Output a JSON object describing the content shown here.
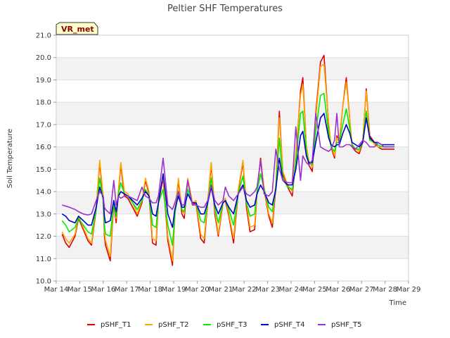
{
  "chart_data": {
    "type": "line",
    "title": "Peltier SHF Temperatures",
    "xlabel": "Time",
    "ylabel": "Soil Temperature",
    "badge": "VR_met",
    "x_ticks": [
      "Mar 14",
      "Mar 15",
      "Mar 16",
      "Mar 17",
      "Mar 18",
      "Mar 19",
      "Mar 20",
      "Mar 21",
      "Mar 22",
      "Mar 23",
      "Mar 24",
      "Mar 25",
      "Mar 26",
      "Mar 27",
      "Mar 28",
      "Mar 29"
    ],
    "x_range_days": [
      14,
      29
    ],
    "ylim": [
      10.0,
      21.0
    ],
    "y_ticks": [
      "10.0",
      "11.0",
      "12.0",
      "13.0",
      "14.0",
      "15.0",
      "16.0",
      "17.0",
      "18.0",
      "19.0",
      "20.0",
      "21.0"
    ],
    "grid": "horizontal alternating bands",
    "legend_position": "bottom",
    "series": [
      {
        "name": "pSHF_T1",
        "color": "#e00000",
        "x": [
          14.25,
          14.4,
          14.55,
          14.8,
          14.95,
          15.15,
          15.35,
          15.5,
          15.7,
          15.85,
          16.0,
          16.05,
          16.1,
          16.3,
          16.45,
          16.55,
          16.65,
          16.75,
          16.9,
          17.05,
          17.25,
          17.45,
          17.65,
          17.8,
          17.95,
          18.1,
          18.25,
          18.35,
          18.55,
          18.75,
          18.95,
          19.05,
          19.2,
          19.35,
          19.45,
          19.6,
          19.8,
          19.95,
          20.15,
          20.3,
          20.45,
          20.6,
          20.75,
          20.9,
          21.1,
          21.2,
          21.35,
          21.55,
          21.75,
          21.95,
          22.1,
          22.25,
          22.45,
          22.55,
          22.7,
          22.85,
          23.05,
          23.2,
          23.35,
          23.5,
          23.65,
          23.85,
          24.05,
          24.2,
          24.4,
          24.5,
          24.65,
          24.75,
          24.9,
          25.05,
          25.25,
          25.4,
          25.6,
          25.7,
          25.85,
          25.95,
          26.05,
          26.2,
          26.35,
          26.5,
          26.6,
          26.75,
          26.9,
          27.05,
          27.2,
          27.35,
          27.55,
          27.7,
          27.85,
          27.95,
          28.05,
          28.15,
          28.25,
          28.4
        ],
        "values": [
          12.1,
          11.7,
          11.5,
          12.0,
          12.8,
          12.3,
          11.8,
          11.6,
          13.2,
          15.3,
          13.6,
          12.0,
          11.6,
          10.9,
          13.5,
          12.6,
          14.0,
          15.2,
          13.8,
          13.7,
          13.3,
          12.9,
          13.5,
          14.5,
          13.9,
          11.7,
          11.6,
          13.5,
          14.6,
          11.8,
          10.7,
          13.0,
          14.5,
          13.0,
          12.8,
          14.5,
          13.4,
          13.5,
          11.9,
          11.7,
          13.5,
          15.2,
          13.0,
          12.0,
          13.5,
          13.6,
          12.9,
          11.7,
          14.0,
          15.3,
          13.3,
          12.2,
          12.3,
          14.0,
          15.5,
          14.1,
          12.9,
          12.4,
          14.2,
          17.6,
          14.8,
          14.2,
          13.8,
          15.5,
          18.5,
          19.1,
          16.0,
          15.2,
          14.9,
          17.5,
          19.8,
          20.1,
          17.0,
          16.0,
          15.5,
          16.5,
          16.2,
          17.8,
          19.1,
          17.2,
          16.0,
          15.8,
          15.7,
          16.2,
          18.6,
          16.5,
          16.2,
          16.0,
          15.9,
          15.9,
          15.9,
          15.9,
          15.9,
          15.9
        ]
      },
      {
        "name": "pSHF_T2",
        "color": "#ffa500",
        "x": [
          14.25,
          14.4,
          14.55,
          14.8,
          14.95,
          15.15,
          15.35,
          15.5,
          15.7,
          15.85,
          16.0,
          16.05,
          16.1,
          16.3,
          16.45,
          16.55,
          16.65,
          16.75,
          16.9,
          17.05,
          17.25,
          17.45,
          17.65,
          17.8,
          17.95,
          18.1,
          18.25,
          18.35,
          18.55,
          18.75,
          18.95,
          19.05,
          19.2,
          19.35,
          19.45,
          19.6,
          19.8,
          19.95,
          20.15,
          20.3,
          20.45,
          20.6,
          20.75,
          20.9,
          21.1,
          21.2,
          21.35,
          21.55,
          21.75,
          21.95,
          22.1,
          22.25,
          22.45,
          22.55,
          22.7,
          22.85,
          23.05,
          23.2,
          23.35,
          23.5,
          23.65,
          23.85,
          24.05,
          24.2,
          24.4,
          24.5,
          24.65,
          24.75,
          24.9,
          25.05,
          25.25,
          25.4,
          25.6,
          25.7,
          25.85,
          25.95,
          26.05,
          26.2,
          26.35,
          26.5,
          26.6,
          26.75,
          26.9,
          27.05,
          27.2,
          27.35,
          27.55,
          27.7,
          27.85,
          27.95,
          28.05,
          28.15,
          28.25,
          28.4
        ],
        "values": [
          12.2,
          11.9,
          11.7,
          12.1,
          12.9,
          12.4,
          11.9,
          11.7,
          13.3,
          15.4,
          13.8,
          12.2,
          11.8,
          11.1,
          13.6,
          12.8,
          14.1,
          15.3,
          14.0,
          13.9,
          13.5,
          13.0,
          13.6,
          14.6,
          14.0,
          11.9,
          11.8,
          13.6,
          14.7,
          12.0,
          10.9,
          13.1,
          14.6,
          13.2,
          13.0,
          14.6,
          13.5,
          13.6,
          12.1,
          11.9,
          13.6,
          15.3,
          13.2,
          12.1,
          13.6,
          13.7,
          13.0,
          11.9,
          14.1,
          15.4,
          13.5,
          12.4,
          12.5,
          14.1,
          15.4,
          14.2,
          13.0,
          12.6,
          14.4,
          17.3,
          14.9,
          14.3,
          14.0,
          15.7,
          18.3,
          18.8,
          16.1,
          15.4,
          15.1,
          17.3,
          19.6,
          19.7,
          17.1,
          16.1,
          15.6,
          16.4,
          16.3,
          17.8,
          18.9,
          17.2,
          16.1,
          15.9,
          15.8,
          16.3,
          18.5,
          16.4,
          16.1,
          16.0,
          16.0,
          16.0,
          16.0,
          16.0,
          16.0,
          16.0
        ]
      },
      {
        "name": "pSHF_T3",
        "color": "#00ee00",
        "x": [
          14.25,
          14.4,
          14.55,
          14.8,
          14.95,
          15.15,
          15.35,
          15.5,
          15.7,
          15.85,
          16.0,
          16.05,
          16.1,
          16.3,
          16.45,
          16.55,
          16.65,
          16.75,
          16.9,
          17.05,
          17.25,
          17.45,
          17.65,
          17.8,
          17.95,
          18.1,
          18.25,
          18.35,
          18.55,
          18.75,
          18.95,
          19.05,
          19.2,
          19.35,
          19.45,
          19.6,
          19.8,
          19.95,
          20.15,
          20.3,
          20.45,
          20.6,
          20.75,
          20.9,
          21.1,
          21.2,
          21.35,
          21.55,
          21.75,
          21.95,
          22.1,
          22.25,
          22.45,
          22.55,
          22.7,
          22.85,
          23.05,
          23.2,
          23.35,
          23.5,
          23.65,
          23.85,
          24.05,
          24.2,
          24.4,
          24.5,
          24.65,
          24.75,
          24.9,
          25.05,
          25.25,
          25.4,
          25.6,
          25.7,
          25.85,
          25.95,
          26.05,
          26.2,
          26.35,
          26.5,
          26.6,
          26.75,
          26.9,
          27.05,
          27.2,
          27.35,
          27.55,
          27.7,
          27.85,
          27.95,
          28.05,
          28.15,
          28.25,
          28.4
        ],
        "values": [
          12.7,
          12.5,
          12.2,
          12.4,
          12.8,
          12.5,
          12.2,
          12.1,
          13.2,
          14.6,
          13.6,
          12.5,
          12.1,
          12.0,
          13.5,
          12.9,
          13.9,
          14.4,
          13.9,
          13.8,
          13.5,
          13.2,
          13.6,
          14.1,
          13.8,
          12.5,
          12.4,
          13.5,
          14.1,
          12.5,
          11.6,
          13.0,
          14.0,
          13.2,
          13.1,
          14.1,
          13.5,
          13.5,
          12.7,
          12.6,
          13.5,
          14.6,
          13.3,
          12.6,
          13.5,
          13.6,
          13.2,
          12.5,
          13.9,
          14.7,
          13.5,
          12.9,
          13.0,
          14.0,
          14.8,
          14.1,
          13.3,
          13.1,
          14.2,
          16.4,
          14.6,
          14.2,
          14.1,
          15.3,
          17.5,
          17.6,
          15.8,
          15.3,
          15.2,
          16.7,
          18.3,
          18.4,
          16.6,
          16.0,
          15.8,
          16.2,
          16.2,
          17.0,
          17.7,
          16.8,
          16.1,
          15.9,
          15.9,
          16.2,
          17.6,
          16.3,
          16.2,
          16.1,
          16.0,
          16.0,
          16.0,
          16.0,
          16.0,
          16.0
        ]
      },
      {
        "name": "pSHF_T4",
        "color": "#0000cc",
        "x": [
          14.25,
          14.4,
          14.55,
          14.8,
          14.95,
          15.15,
          15.35,
          15.5,
          15.7,
          15.85,
          16.0,
          16.05,
          16.1,
          16.3,
          16.45,
          16.55,
          16.65,
          16.75,
          16.9,
          17.05,
          17.25,
          17.45,
          17.65,
          17.8,
          17.95,
          18.1,
          18.25,
          18.35,
          18.55,
          18.75,
          18.95,
          19.05,
          19.2,
          19.35,
          19.45,
          19.6,
          19.8,
          19.95,
          20.15,
          20.3,
          20.45,
          20.6,
          20.75,
          20.9,
          21.1,
          21.2,
          21.35,
          21.55,
          21.75,
          21.95,
          22.1,
          22.25,
          22.45,
          22.55,
          22.7,
          22.85,
          23.05,
          23.2,
          23.35,
          23.5,
          23.65,
          23.85,
          24.05,
          24.2,
          24.4,
          24.5,
          24.65,
          24.75,
          24.9,
          25.05,
          25.25,
          25.4,
          25.6,
          25.7,
          25.85,
          25.95,
          26.05,
          26.2,
          26.35,
          26.5,
          26.6,
          26.75,
          26.9,
          27.05,
          27.2,
          27.35,
          27.55,
          27.7,
          27.85,
          27.95,
          28.05,
          28.15,
          28.25,
          28.4
        ],
        "values": [
          13.0,
          12.9,
          12.7,
          12.6,
          12.9,
          12.7,
          12.5,
          12.5,
          13.3,
          14.2,
          13.7,
          12.9,
          12.6,
          12.7,
          13.6,
          13.1,
          13.8,
          14.0,
          13.9,
          13.8,
          13.6,
          13.4,
          13.7,
          14.0,
          13.8,
          13.0,
          12.9,
          13.5,
          14.8,
          13.0,
          12.4,
          13.2,
          13.8,
          13.3,
          13.3,
          13.9,
          13.5,
          13.5,
          13.0,
          13.0,
          13.5,
          14.2,
          13.4,
          13.0,
          13.5,
          13.6,
          13.3,
          13.0,
          13.9,
          14.3,
          13.6,
          13.3,
          13.4,
          13.9,
          14.3,
          14.0,
          13.5,
          13.4,
          14.1,
          15.5,
          14.5,
          14.3,
          14.3,
          15.0,
          16.5,
          16.7,
          15.6,
          15.3,
          15.3,
          16.2,
          17.3,
          17.5,
          16.4,
          16.1,
          16.0,
          16.1,
          16.1,
          16.6,
          17.0,
          16.6,
          16.2,
          16.1,
          16.0,
          16.2,
          17.3,
          16.4,
          16.2,
          16.2,
          16.1,
          16.1,
          16.1,
          16.1,
          16.1,
          16.1
        ]
      },
      {
        "name": "pSHF_T5",
        "color": "#9933cc",
        "x": [
          14.25,
          14.4,
          14.55,
          14.8,
          14.95,
          15.15,
          15.35,
          15.5,
          15.7,
          15.85,
          16.0,
          16.05,
          16.1,
          16.3,
          16.45,
          16.55,
          16.65,
          16.75,
          16.9,
          17.05,
          17.25,
          17.45,
          17.65,
          17.8,
          17.95,
          18.1,
          18.25,
          18.35,
          18.55,
          18.75,
          18.95,
          19.05,
          19.2,
          19.35,
          19.45,
          19.6,
          19.8,
          19.95,
          20.15,
          20.3,
          20.45,
          20.6,
          20.75,
          20.9,
          21.1,
          21.2,
          21.35,
          21.55,
          21.75,
          21.95,
          22.1,
          22.25,
          22.45,
          22.55,
          22.7,
          22.85,
          23.05,
          23.2,
          23.35,
          23.5,
          23.65,
          23.85,
          24.05,
          24.2,
          24.4,
          24.5,
          24.65,
          24.75,
          24.9,
          25.05,
          25.25,
          25.4,
          25.6,
          25.7,
          25.85,
          25.95,
          26.05,
          26.2,
          26.35,
          26.5,
          26.6,
          26.75,
          26.9,
          27.05,
          27.2,
          27.35,
          27.55,
          27.7,
          27.85,
          27.95,
          28.05,
          28.15,
          28.25,
          28.4
        ],
        "values": [
          13.4,
          13.35,
          13.3,
          13.2,
          13.1,
          13.0,
          12.95,
          13.0,
          13.6,
          14.0,
          13.8,
          13.3,
          13.2,
          13.0,
          14.5,
          13.4,
          13.8,
          13.7,
          13.8,
          13.8,
          13.7,
          13.6,
          14.2,
          13.8,
          13.7,
          13.5,
          13.5,
          13.8,
          15.5,
          13.4,
          13.2,
          13.5,
          14.0,
          13.4,
          13.4,
          14.5,
          13.4,
          13.4,
          13.3,
          13.3,
          13.6,
          14.3,
          13.6,
          13.4,
          13.6,
          14.2,
          13.8,
          13.6,
          13.9,
          14.2,
          13.9,
          13.8,
          14.0,
          14.2,
          15.4,
          13.9,
          13.8,
          14.0,
          15.9,
          15.0,
          14.5,
          14.4,
          14.4,
          16.9,
          14.5,
          15.6,
          15.3,
          15.2,
          15.4,
          17.5,
          16.0,
          15.9,
          15.8,
          15.9,
          16.3,
          17.5,
          16.0,
          16.0,
          16.1,
          16.1,
          16.0,
          15.9,
          16.1,
          16.3,
          16.2,
          16.0,
          16.0,
          16.2,
          16.1,
          16.0,
          16.0,
          16.0,
          16.0,
          16.0
        ]
      }
    ]
  }
}
